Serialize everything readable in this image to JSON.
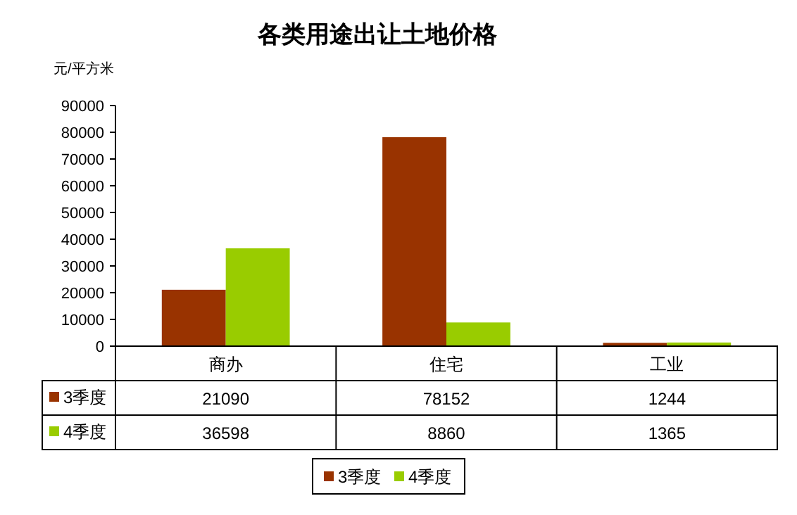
{
  "chart_data": {
    "type": "bar",
    "title": "各类用途出让土地价格",
    "ylabel": "元/平方米",
    "categories": [
      "商办",
      "住宅",
      "工业"
    ],
    "series": [
      {
        "name": "3季度",
        "color": "#993300",
        "values": [
          21090,
          78152,
          1244
        ]
      },
      {
        "name": "4季度",
        "color": "#99cc00",
        "values": [
          36598,
          8860,
          1365
        ]
      }
    ],
    "ylim": [
      0,
      90000
    ],
    "yticks": [
      0,
      10000,
      20000,
      30000,
      40000,
      50000,
      60000,
      70000,
      80000,
      90000
    ],
    "data_labels": true,
    "legend": "bottom",
    "grid": false
  }
}
